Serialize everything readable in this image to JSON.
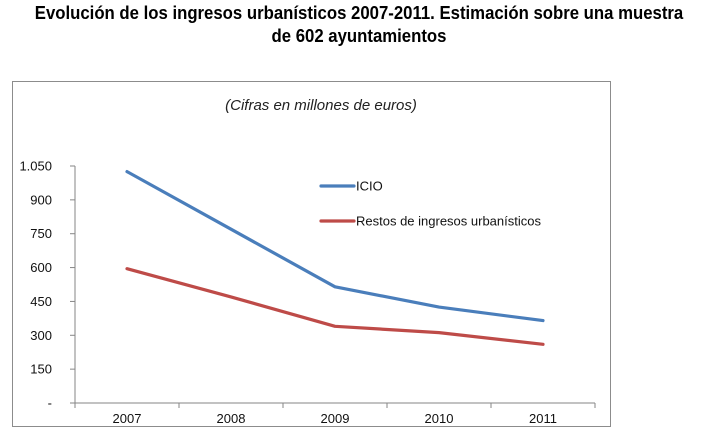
{
  "title_line1": "Evolución de los ingresos urbanísticos 2007-2011. Estimación sobre una muestra",
  "title_line2": "de 602 ayuntamientos",
  "chart_data": {
    "type": "line",
    "title": "Evolución de los ingresos urbanísticos 2007-2011. Estimación sobre una muestra de 602 ayuntamientos",
    "subtitle": "(Cifras en millones de euros)",
    "xlabel": "",
    "ylabel": "",
    "categories": [
      "2007",
      "2008",
      "2009",
      "2010",
      "2011"
    ],
    "ylim": [
      0,
      1050
    ],
    "yticks": [
      0,
      150,
      300,
      450,
      600,
      750,
      900,
      1050
    ],
    "ytick_labels": [
      "-",
      "150",
      "300",
      "450",
      "600",
      "750",
      "900",
      "1.050"
    ],
    "grid": false,
    "legend_position": "top-right",
    "series": [
      {
        "name": "ICIO",
        "color": "#4a7ebb",
        "values": [
          1025,
          770,
          515,
          425,
          365
        ]
      },
      {
        "name": "Restos de ingresos urbanísticos",
        "color": "#be4b48",
        "values": [
          595,
          470,
          340,
          312,
          260
        ]
      }
    ]
  }
}
